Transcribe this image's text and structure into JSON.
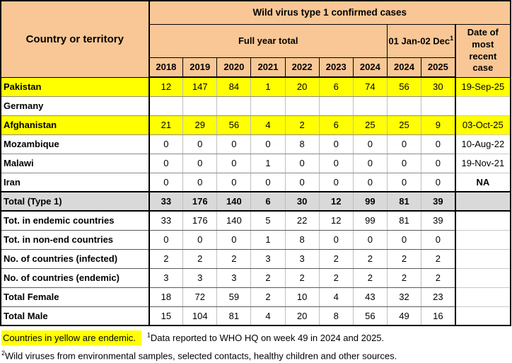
{
  "colors": {
    "header_bg": "#F9C795",
    "endemic_bg": "#FFFF00",
    "total_bg": "#D9D9D9"
  },
  "table": {
    "title": "Wild virus type 1 confirmed cases",
    "corner_header": "Country or territory",
    "group_full_year": "Full year total",
    "group_jan_dec": "01 Jan-02 Dec",
    "group_jan_dec_sup": "1",
    "date_header": "Date of most recent case",
    "year_headers": [
      "2018",
      "2019",
      "2020",
      "2021",
      "2022",
      "2023",
      "2024",
      "2024",
      "2025"
    ],
    "rows": [
      {
        "label": "Pakistan",
        "values": [
          "12",
          "147",
          "84",
          "1",
          "20",
          "6",
          "74",
          "56",
          "30"
        ],
        "date": "19-Sep-25",
        "style": "endemic",
        "date_bold": false
      },
      {
        "label": "Germany",
        "values": [
          "",
          "",
          "",
          "",
          "",
          "",
          "",
          "",
          ""
        ],
        "date": "",
        "style": "plain",
        "date_bold": false
      },
      {
        "label": "Afghanistan",
        "values": [
          "21",
          "29",
          "56",
          "4",
          "2",
          "6",
          "25",
          "25",
          "9"
        ],
        "date": "03-Oct-25",
        "style": "endemic",
        "date_bold": false
      },
      {
        "label": "Mozambique",
        "values": [
          "0",
          "0",
          "0",
          "0",
          "8",
          "0",
          "0",
          "0",
          "0"
        ],
        "date": "10-Aug-22",
        "style": "plain",
        "date_bold": false
      },
      {
        "label": "Malawi",
        "values": [
          "0",
          "0",
          "0",
          "1",
          "0",
          "0",
          "0",
          "0",
          "0"
        ],
        "date": "19-Nov-21",
        "style": "plain",
        "date_bold": false
      },
      {
        "label": "Iran",
        "values": [
          "0",
          "0",
          "0",
          "0",
          "0",
          "0",
          "0",
          "0",
          "0"
        ],
        "date": "NA",
        "style": "plain",
        "date_bold": true
      },
      {
        "label": "Total (Type 1)",
        "values": [
          "33",
          "176",
          "140",
          "6",
          "30",
          "12",
          "99",
          "81",
          "39"
        ],
        "date": "",
        "style": "total",
        "date_bold": false
      },
      {
        "label": "Tot. in endemic countries",
        "values": [
          "33",
          "176",
          "140",
          "5",
          "22",
          "12",
          "99",
          "81",
          "39"
        ],
        "date": "",
        "style": "summary",
        "date_bold": false
      },
      {
        "label": "Tot. in non-end countries",
        "values": [
          "0",
          "0",
          "0",
          "1",
          "8",
          "0",
          "0",
          "0",
          "0"
        ],
        "date": "",
        "style": "summary",
        "date_bold": false
      },
      {
        "label": "No. of countries (infected)",
        "values": [
          "2",
          "2",
          "2",
          "3",
          "3",
          "2",
          "2",
          "2",
          "2"
        ],
        "date": "",
        "style": "summary",
        "date_bold": false
      },
      {
        "label": "No. of countries (endemic)",
        "values": [
          "3",
          "3",
          "3",
          "2",
          "2",
          "2",
          "2",
          "2",
          "2"
        ],
        "date": "",
        "style": "summary",
        "date_bold": false
      },
      {
        "label": "Total Female",
        "values": [
          "18",
          "72",
          "59",
          "2",
          "10",
          "4",
          "43",
          "32",
          "23"
        ],
        "date": "",
        "style": "summary",
        "date_bold": false
      },
      {
        "label": "Total Male",
        "values": [
          "15",
          "104",
          "81",
          "4",
          "20",
          "8",
          "56",
          "49",
          "16"
        ],
        "date": "",
        "style": "summary",
        "date_bold": false
      }
    ]
  },
  "footer": {
    "legend": "Countries in yellow are endemic.",
    "note1_sup": "1",
    "note1": "Data reported to WHO HQ on week 49 in 2024 and 2025.",
    "note2_sup": "2",
    "note2": "Wild viruses from environmental samples, selected contacts, healthy children and other sources."
  }
}
